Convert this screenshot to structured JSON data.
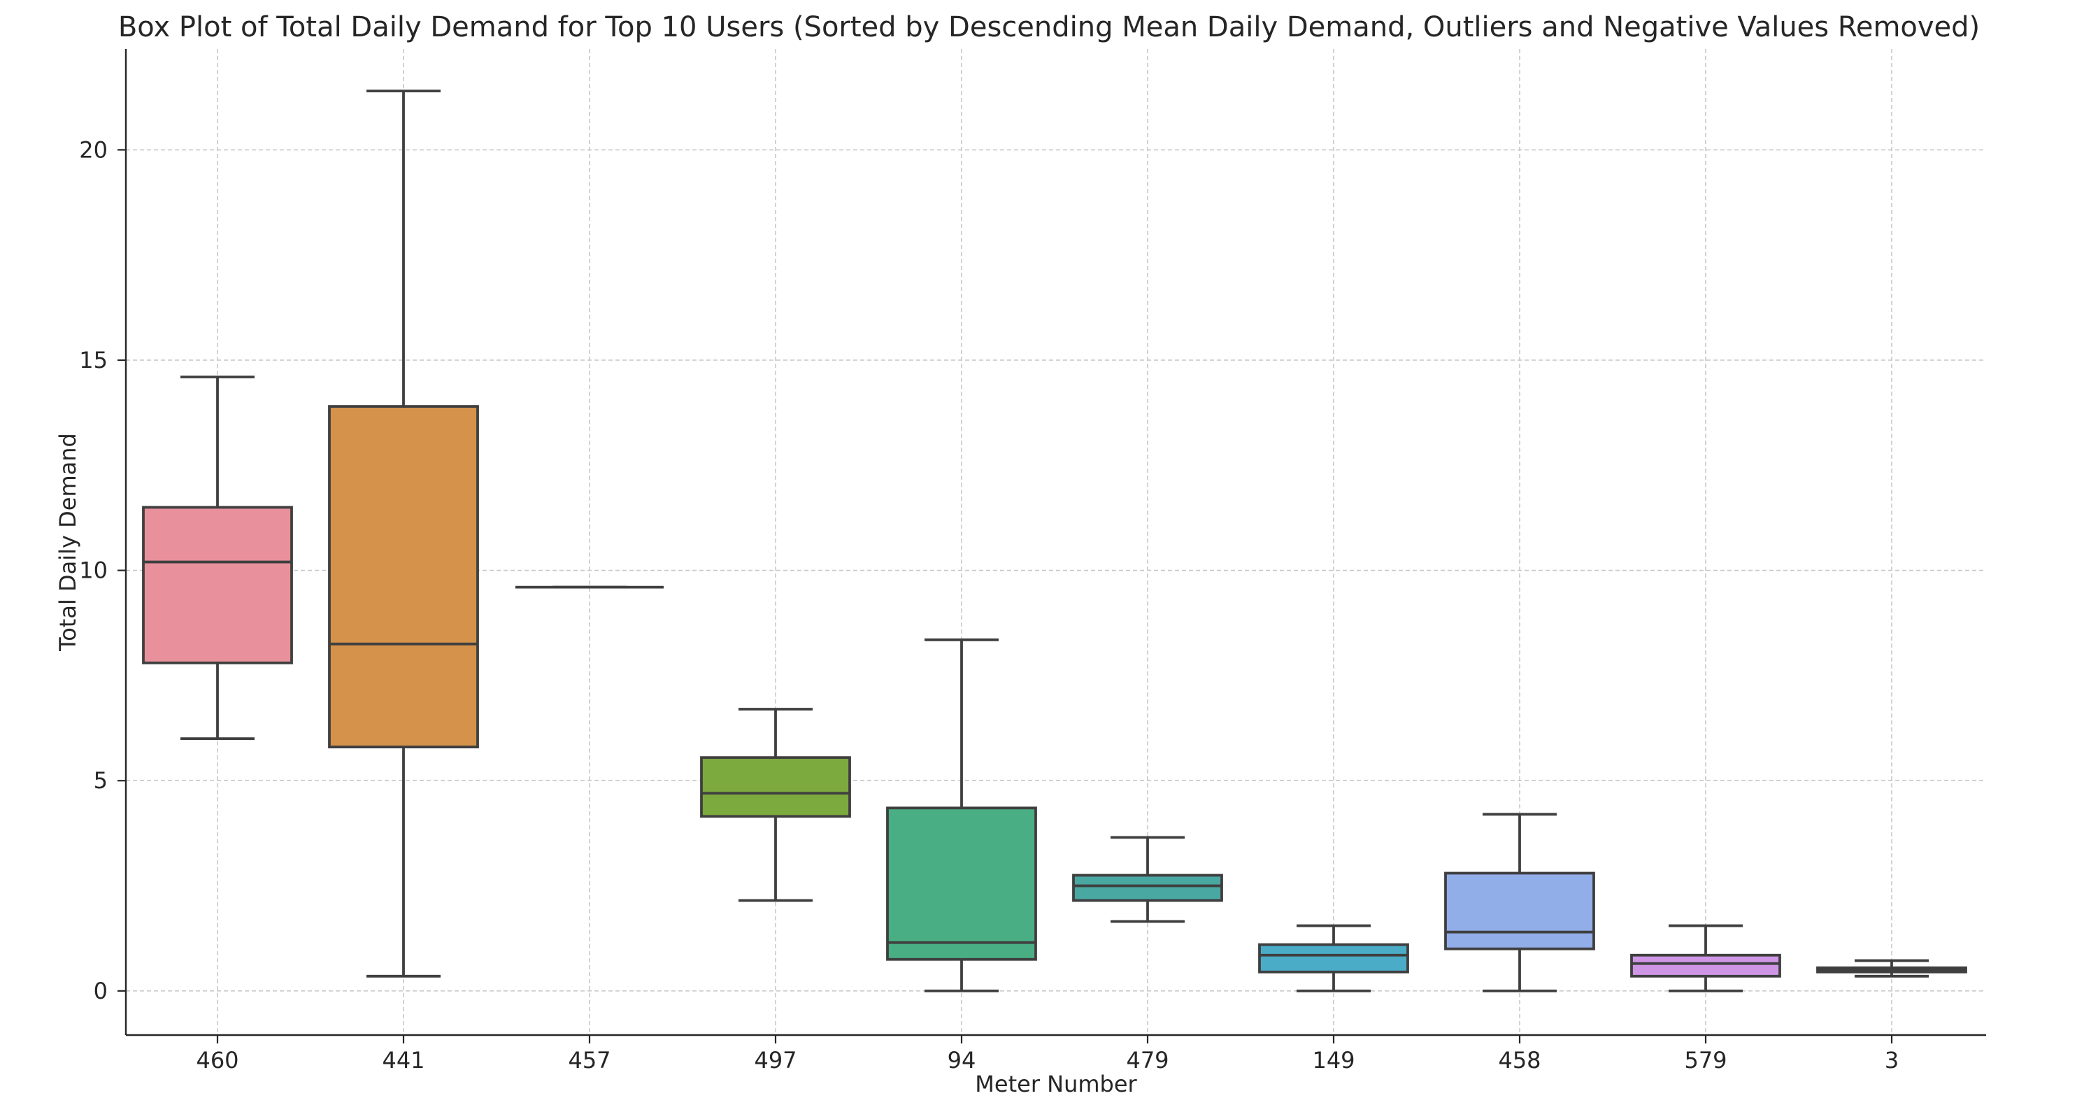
{
  "chart_data": {
    "type": "box",
    "title": "Box Plot of Total Daily Demand for Top 10 Users (Sorted by Descending Mean Daily Demand, Outliers and Negative Values Removed)",
    "xlabel": "Meter Number",
    "ylabel": "Total Daily Demand",
    "ylim": [
      -1.05,
      22.4
    ],
    "yticks": [
      0,
      5,
      10,
      15,
      20
    ],
    "grid": true,
    "categories": [
      "460",
      "441",
      "457",
      "497",
      "94",
      "479",
      "149",
      "458",
      "579",
      "3"
    ],
    "boxes": [
      {
        "category": "460",
        "whisker_low": 6.0,
        "q1": 7.8,
        "median": 10.2,
        "q3": 11.5,
        "whisker_high": 14.6,
        "color": "#e8919c"
      },
      {
        "category": "441",
        "whisker_low": 0.35,
        "q1": 5.8,
        "median": 8.25,
        "q3": 13.9,
        "whisker_high": 21.4,
        "color": "#d5924a"
      },
      {
        "category": "457",
        "whisker_low": 9.6,
        "q1": 9.6,
        "median": 9.6,
        "q3": 9.6,
        "whisker_high": 9.6,
        "color": "#b79a44"
      },
      {
        "category": "497",
        "whisker_low": 2.15,
        "q1": 4.15,
        "median": 4.7,
        "q3": 5.55,
        "whisker_high": 6.7,
        "color": "#7daa3f"
      },
      {
        "category": "94",
        "whisker_low": 0.0,
        "q1": 0.75,
        "median": 1.15,
        "q3": 4.35,
        "whisker_high": 8.35,
        "color": "#49ae84"
      },
      {
        "category": "479",
        "whisker_low": 1.65,
        "q1": 2.15,
        "median": 2.5,
        "q3": 2.75,
        "whisker_high": 3.65,
        "color": "#4aa8a3"
      },
      {
        "category": "149",
        "whisker_low": 0.0,
        "q1": 0.45,
        "median": 0.85,
        "q3": 1.1,
        "whisker_high": 1.55,
        "color": "#4bacc7"
      },
      {
        "category": "458",
        "whisker_low": 0.0,
        "q1": 1.0,
        "median": 1.4,
        "q3": 2.8,
        "whisker_high": 4.2,
        "color": "#92aee9"
      },
      {
        "category": "579",
        "whisker_low": 0.0,
        "q1": 0.35,
        "median": 0.65,
        "q3": 0.85,
        "whisker_high": 1.55,
        "color": "#cf96e6"
      },
      {
        "category": "3",
        "whisker_low": 0.35,
        "q1": 0.45,
        "median": 0.5,
        "q3": 0.55,
        "whisker_high": 0.72,
        "color": "#e592c5"
      }
    ]
  }
}
